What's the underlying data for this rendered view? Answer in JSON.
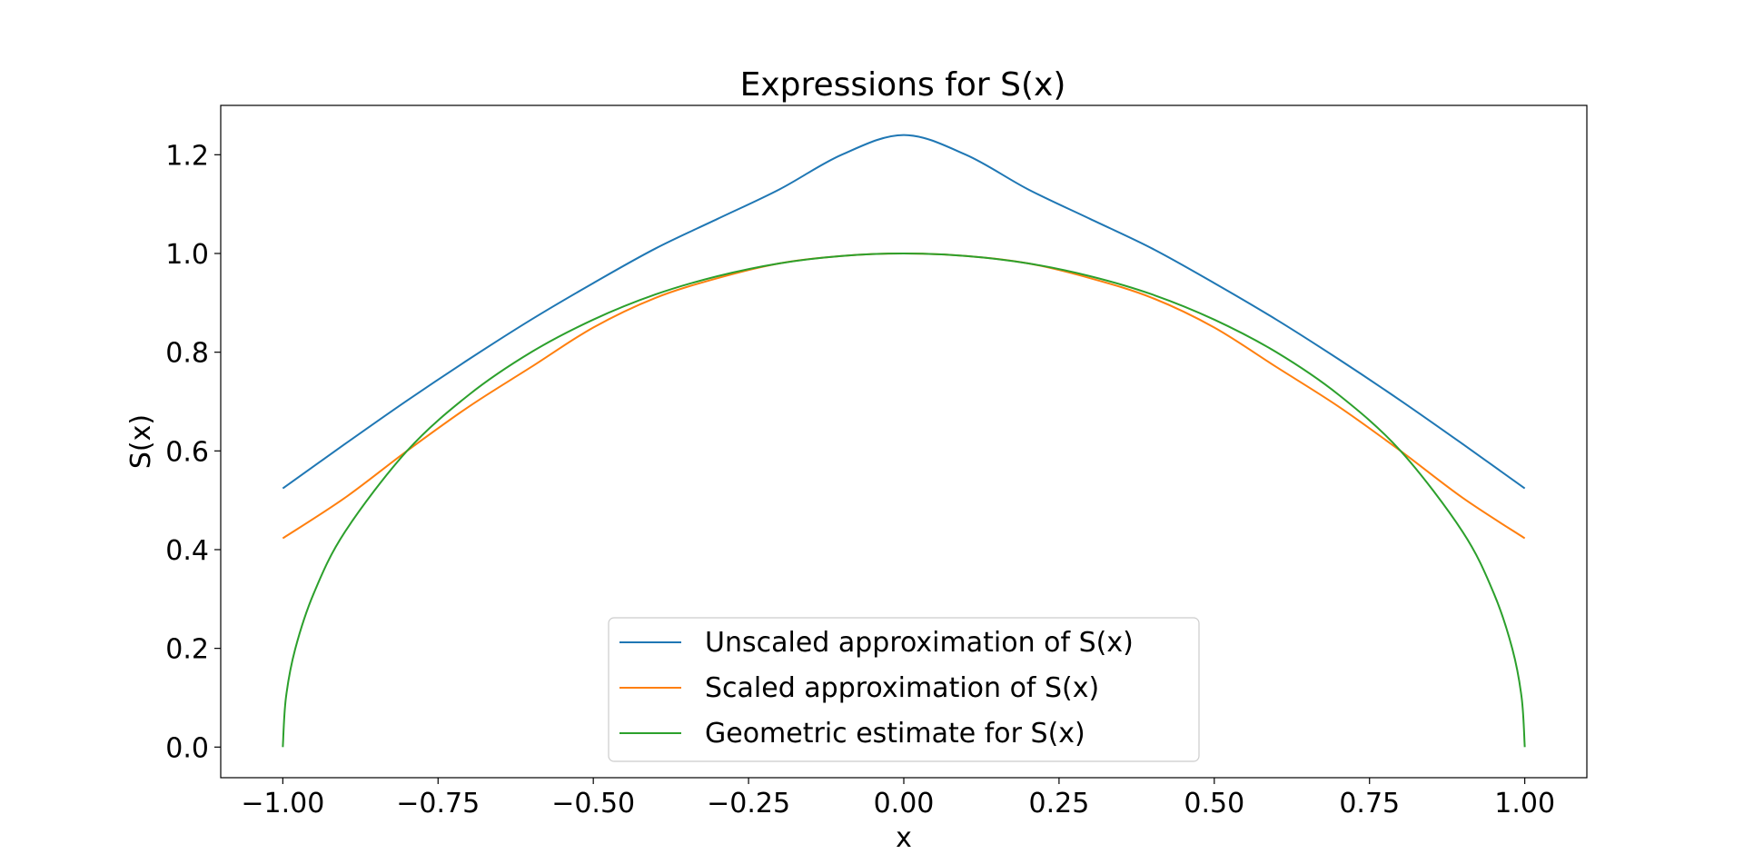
{
  "chart_data": {
    "type": "line",
    "title": "Expressions for S(x)",
    "xlabel": "x",
    "ylabel": "S(x)",
    "xlim": [
      -1.1,
      1.1
    ],
    "ylim": [
      -0.062,
      1.3
    ],
    "xticks": [
      -1.0,
      -0.75,
      -0.5,
      -0.25,
      0.0,
      0.25,
      0.5,
      0.75,
      1.0
    ],
    "xtick_labels": [
      "−1.00",
      "−0.75",
      "−0.50",
      "−0.25",
      "0.00",
      "0.25",
      "0.50",
      "0.75",
      "1.00"
    ],
    "yticks": [
      0.0,
      0.2,
      0.4,
      0.6,
      0.8,
      1.0,
      1.2
    ],
    "ytick_labels": [
      "0.0",
      "0.2",
      "0.4",
      "0.6",
      "0.8",
      "1.0",
      "1.2"
    ],
    "grid": false,
    "legend_position": "lower-center",
    "series": [
      {
        "name": "Unscaled approximation of S(x)",
        "color": "#1f77b4",
        "x": [
          -1.0,
          -0.9,
          -0.8,
          -0.7,
          -0.6,
          -0.5,
          -0.4,
          -0.3,
          -0.2,
          -0.1,
          0.0,
          0.1,
          0.2,
          0.3,
          0.4,
          0.5,
          0.6,
          0.7,
          0.8,
          0.9,
          1.0
        ],
        "y": [
          0.524,
          0.614,
          0.702,
          0.786,
          0.866,
          0.94,
          1.01,
          1.07,
          1.13,
          1.2,
          1.24,
          1.2,
          1.13,
          1.07,
          1.01,
          0.94,
          0.866,
          0.786,
          0.702,
          0.614,
          0.524
        ]
      },
      {
        "name": "Scaled approximation of S(x)",
        "color": "#ff7f0e",
        "x": [
          -1.0,
          -0.9,
          -0.8,
          -0.7,
          -0.6,
          -0.5,
          -0.4,
          -0.3,
          -0.2,
          -0.1,
          0.0,
          0.1,
          0.2,
          0.3,
          0.4,
          0.5,
          0.6,
          0.7,
          0.8,
          0.9,
          1.0
        ],
        "y": [
          0.423,
          0.505,
          0.6,
          0.69,
          0.77,
          0.85,
          0.91,
          0.95,
          0.98,
          0.995,
          1.0,
          0.995,
          0.98,
          0.95,
          0.91,
          0.85,
          0.77,
          0.69,
          0.6,
          0.505,
          0.423
        ]
      },
      {
        "name": "Geometric estimate for S(x)",
        "color": "#2ca02c",
        "x": [
          -1.0,
          -0.995,
          -0.98,
          -0.95,
          -0.9,
          -0.8,
          -0.7,
          -0.6,
          -0.5,
          -0.4,
          -0.3,
          -0.2,
          -0.1,
          0.0,
          0.1,
          0.2,
          0.3,
          0.4,
          0.5,
          0.6,
          0.7,
          0.8,
          0.9,
          0.95,
          0.98,
          0.995,
          1.0
        ],
        "y": [
          0.0,
          0.1,
          0.199,
          0.312,
          0.436,
          0.6,
          0.714,
          0.8,
          0.866,
          0.917,
          0.954,
          0.98,
          0.995,
          1.0,
          0.995,
          0.98,
          0.954,
          0.917,
          0.866,
          0.8,
          0.714,
          0.6,
          0.436,
          0.312,
          0.199,
          0.1,
          0.0
        ]
      }
    ]
  }
}
